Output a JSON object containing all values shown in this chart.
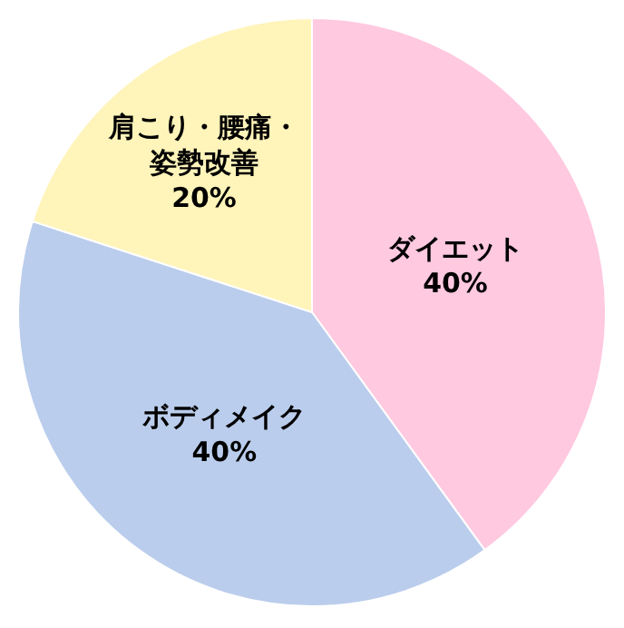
{
  "chart_data": {
    "type": "pie",
    "categories": [
      "ダイエット",
      "ボディメイク",
      "肩こり・腰痛・姿勢改善"
    ],
    "values": [
      40,
      40,
      20
    ],
    "value_labels": [
      "40%",
      "40%",
      "20%"
    ],
    "colors": [
      "#ffc9e0",
      "#bbcdec",
      "#fff4ba"
    ],
    "legend": false
  }
}
